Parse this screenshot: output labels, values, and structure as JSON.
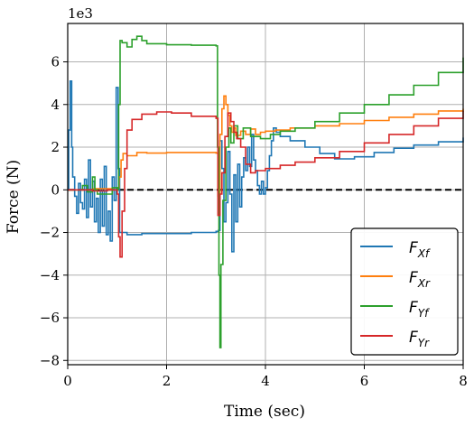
{
  "chart_data": {
    "type": "line",
    "xlabel": "Time (sec)",
    "ylabel": "Force (N)",
    "scale_label": "1e3",
    "xlim": [
      0,
      8
    ],
    "ylim": [
      -8.2,
      7.8
    ],
    "x_ticks": [
      0,
      2,
      4,
      6,
      8
    ],
    "y_ticks": [
      -8,
      -6,
      -4,
      -2,
      0,
      2,
      4,
      6
    ],
    "x_tick_labels": [
      "0",
      "2",
      "4",
      "6",
      "8"
    ],
    "y_tick_labels": [
      "−8",
      "−6",
      "−4",
      "−2",
      "0",
      "2",
      "4",
      "6"
    ],
    "grid": true,
    "legend_position": "lower-right",
    "zero_line": {
      "y": 0,
      "style": "dashed",
      "color": "#000000"
    },
    "series": [
      {
        "name": "F_Xf",
        "label_main": "F",
        "label_sub": "Xf",
        "color": "#1f77b4",
        "points": [
          [
            0,
            0
          ],
          [
            0.02,
            2.8
          ],
          [
            0.05,
            5.1
          ],
          [
            0.08,
            2.0
          ],
          [
            0.1,
            0.6
          ],
          [
            0.14,
            -0.3
          ],
          [
            0.18,
            -1.1
          ],
          [
            0.22,
            0.3
          ],
          [
            0.26,
            -0.6
          ],
          [
            0.3,
            -0.9
          ],
          [
            0.34,
            0.5
          ],
          [
            0.38,
            -1.3
          ],
          [
            0.42,
            1.4
          ],
          [
            0.46,
            -0.8
          ],
          [
            0.5,
            0.4
          ],
          [
            0.54,
            -1.5
          ],
          [
            0.58,
            -0.4
          ],
          [
            0.62,
            -2.0
          ],
          [
            0.66,
            0.5
          ],
          [
            0.7,
            -1.7
          ],
          [
            0.74,
            1.1
          ],
          [
            0.78,
            -2.1
          ],
          [
            0.82,
            -1.0
          ],
          [
            0.86,
            -2.4
          ],
          [
            0.9,
            0.6
          ],
          [
            0.94,
            -0.5
          ],
          [
            0.98,
            4.8
          ],
          [
            1.02,
            1.0
          ],
          [
            1.05,
            -2.0
          ],
          [
            1.1,
            -2.0
          ],
          [
            1.2,
            -2.1
          ],
          [
            1.5,
            -2.05
          ],
          [
            2.0,
            -2.05
          ],
          [
            2.5,
            -2.0
          ],
          [
            3.0,
            -1.95
          ],
          [
            3.05,
            -1.9
          ],
          [
            3.08,
            2.3
          ],
          [
            3.12,
            1.0
          ],
          [
            3.16,
            -1.5
          ],
          [
            3.2,
            -0.6
          ],
          [
            3.24,
            1.8
          ],
          [
            3.28,
            -0.2
          ],
          [
            3.32,
            -2.9
          ],
          [
            3.36,
            0.7
          ],
          [
            3.4,
            -1.5
          ],
          [
            3.44,
            1.2
          ],
          [
            3.48,
            -0.8
          ],
          [
            3.52,
            0.6
          ],
          [
            3.56,
            1.5
          ],
          [
            3.6,
            0.9
          ],
          [
            3.64,
            2.0
          ],
          [
            3.68,
            1.1
          ],
          [
            3.72,
            2.6
          ],
          [
            3.76,
            1.4
          ],
          [
            3.8,
            0.9
          ],
          [
            3.84,
            0.2
          ],
          [
            3.88,
            -0.2
          ],
          [
            3.92,
            0.4
          ],
          [
            3.96,
            -0.2
          ],
          [
            4.0,
            0.1
          ],
          [
            4.04,
            0.9
          ],
          [
            4.08,
            1.6
          ],
          [
            4.12,
            2.3
          ],
          [
            4.16,
            2.9
          ],
          [
            4.22,
            2.7
          ],
          [
            4.3,
            2.5
          ],
          [
            4.5,
            2.3
          ],
          [
            4.8,
            2.0
          ],
          [
            5.1,
            1.7
          ],
          [
            5.4,
            1.45
          ],
          [
            5.8,
            1.55
          ],
          [
            6.2,
            1.75
          ],
          [
            6.6,
            1.95
          ],
          [
            7.0,
            2.1
          ],
          [
            7.5,
            2.25
          ],
          [
            8.0,
            2.45
          ]
        ]
      },
      {
        "name": "F_Xr",
        "label_main": "F",
        "label_sub": "Xr",
        "color": "#ff7f0e",
        "points": [
          [
            0,
            0
          ],
          [
            0.2,
            0.0
          ],
          [
            0.5,
            0.05
          ],
          [
            0.9,
            0.0
          ],
          [
            1.0,
            0.1
          ],
          [
            1.04,
            0.6
          ],
          [
            1.08,
            1.4
          ],
          [
            1.12,
            1.7
          ],
          [
            1.2,
            1.6
          ],
          [
            1.4,
            1.75
          ],
          [
            1.6,
            1.72
          ],
          [
            2.0,
            1.75
          ],
          [
            2.5,
            1.75
          ],
          [
            3.0,
            1.72
          ],
          [
            3.04,
            -0.3
          ],
          [
            3.08,
            2.6
          ],
          [
            3.12,
            3.8
          ],
          [
            3.16,
            4.4
          ],
          [
            3.2,
            4.0
          ],
          [
            3.24,
            3.5
          ],
          [
            3.28,
            3.0
          ],
          [
            3.32,
            2.7
          ],
          [
            3.36,
            2.9
          ],
          [
            3.4,
            2.55
          ],
          [
            3.5,
            2.75
          ],
          [
            3.6,
            2.6
          ],
          [
            3.7,
            2.85
          ],
          [
            3.8,
            2.6
          ],
          [
            3.9,
            2.7
          ],
          [
            4.0,
            2.75
          ],
          [
            4.2,
            2.8
          ],
          [
            4.5,
            2.9
          ],
          [
            5.0,
            3.0
          ],
          [
            5.5,
            3.1
          ],
          [
            6.0,
            3.25
          ],
          [
            6.5,
            3.4
          ],
          [
            7.0,
            3.55
          ],
          [
            7.5,
            3.7
          ],
          [
            8.0,
            3.8
          ]
        ]
      },
      {
        "name": "F_Yf",
        "label_main": "F",
        "label_sub": "Yf",
        "color": "#2ca02c",
        "points": [
          [
            0,
            0
          ],
          [
            0.2,
            0.0
          ],
          [
            0.3,
            0.2
          ],
          [
            0.4,
            -0.1
          ],
          [
            0.5,
            0.6
          ],
          [
            0.55,
            0.0
          ],
          [
            0.6,
            -0.2
          ],
          [
            0.9,
            0.1
          ],
          [
            1.0,
            0.0
          ],
          [
            1.03,
            4.0
          ],
          [
            1.06,
            7.0
          ],
          [
            1.1,
            6.9
          ],
          [
            1.2,
            6.7
          ],
          [
            1.3,
            7.05
          ],
          [
            1.4,
            7.2
          ],
          [
            1.5,
            7.0
          ],
          [
            1.6,
            6.85
          ],
          [
            2.0,
            6.8
          ],
          [
            2.5,
            6.78
          ],
          [
            3.0,
            6.75
          ],
          [
            3.03,
            2.0
          ],
          [
            3.06,
            -4.0
          ],
          [
            3.08,
            -7.4
          ],
          [
            3.1,
            -3.5
          ],
          [
            3.14,
            -0.5
          ],
          [
            3.2,
            2.0
          ],
          [
            3.26,
            2.9
          ],
          [
            3.3,
            2.2
          ],
          [
            3.36,
            3.0
          ],
          [
            3.44,
            2.4
          ],
          [
            3.55,
            2.9
          ],
          [
            3.7,
            2.5
          ],
          [
            3.9,
            2.4
          ],
          [
            4.1,
            2.6
          ],
          [
            4.3,
            2.75
          ],
          [
            4.6,
            2.9
          ],
          [
            5.0,
            3.2
          ],
          [
            5.5,
            3.6
          ],
          [
            6.0,
            4.0
          ],
          [
            6.5,
            4.45
          ],
          [
            7.0,
            4.9
          ],
          [
            7.5,
            5.5
          ],
          [
            8.0,
            6.2
          ]
        ]
      },
      {
        "name": "F_Yr",
        "label_main": "F",
        "label_sub": "Yr",
        "color": "#d62728",
        "points": [
          [
            0,
            0
          ],
          [
            0.2,
            0.0
          ],
          [
            0.5,
            -0.05
          ],
          [
            0.8,
            0.0
          ],
          [
            1.0,
            -0.2
          ],
          [
            1.03,
            -2.2
          ],
          [
            1.06,
            -3.15
          ],
          [
            1.1,
            -1.0
          ],
          [
            1.15,
            1.0
          ],
          [
            1.2,
            2.8
          ],
          [
            1.3,
            3.3
          ],
          [
            1.5,
            3.55
          ],
          [
            1.8,
            3.65
          ],
          [
            2.1,
            3.6
          ],
          [
            2.5,
            3.45
          ],
          [
            3.0,
            3.35
          ],
          [
            3.04,
            -1.2
          ],
          [
            3.08,
            -0.2
          ],
          [
            3.12,
            0.8
          ],
          [
            3.18,
            2.5
          ],
          [
            3.24,
            3.6
          ],
          [
            3.3,
            3.2
          ],
          [
            3.36,
            2.7
          ],
          [
            3.42,
            2.4
          ],
          [
            3.5,
            2.0
          ],
          [
            3.6,
            1.2
          ],
          [
            3.7,
            0.8
          ],
          [
            3.8,
            0.9
          ],
          [
            4.0,
            1.0
          ],
          [
            4.3,
            1.15
          ],
          [
            4.6,
            1.3
          ],
          [
            5.0,
            1.5
          ],
          [
            5.5,
            1.8
          ],
          [
            6.0,
            2.2
          ],
          [
            6.5,
            2.6
          ],
          [
            7.0,
            3.0
          ],
          [
            7.5,
            3.35
          ],
          [
            8.0,
            3.7
          ]
        ]
      }
    ]
  }
}
